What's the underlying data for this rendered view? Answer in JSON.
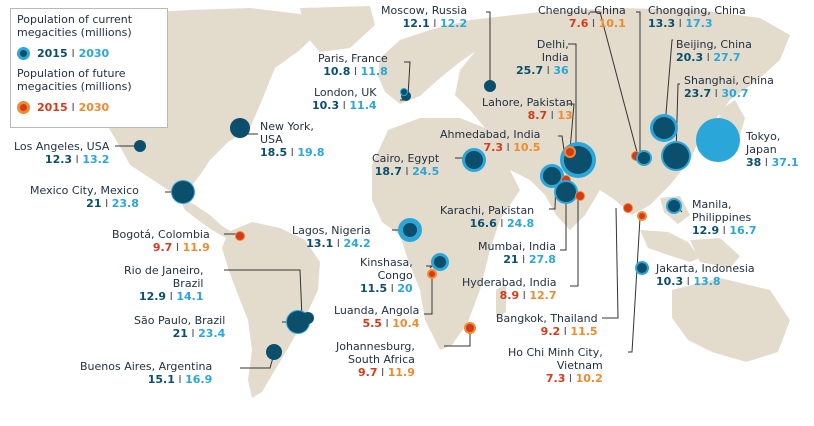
{
  "legend": {
    "current_title": "Population of current megacities (millions)",
    "current_2015": "2015",
    "current_2030": "2030",
    "future_title": "Population of future megacities (millions)",
    "future_2015": "2015",
    "future_2030": "2030",
    "separator": "I"
  },
  "colors": {
    "ocean": "#ffffff",
    "land": "#e3dccd",
    "current_2015": "#0b4f6c",
    "current_2030": "#2ba6d9",
    "future_2015": "#d63a1a",
    "future_2030": "#ef8a2d"
  },
  "cities": [
    {
      "name": "Moscow, Russia",
      "v2015": "12.1",
      "v2030": "12.2",
      "type": "current"
    },
    {
      "name": "Chengdu, China",
      "v2015": "7.6",
      "v2030": "10.1",
      "type": "future"
    },
    {
      "name": "Chongqing, China",
      "v2015": "13.3",
      "v2030": "17.3",
      "type": "current"
    },
    {
      "name": "Paris, France",
      "v2015": "10.8",
      "v2030": "11.8",
      "type": "current"
    },
    {
      "name": "Delhi, India",
      "v2015": "25.7",
      "v2030": "36",
      "type": "current"
    },
    {
      "name": "Beijing, China",
      "v2015": "20.3",
      "v2030": "27.7",
      "type": "current"
    },
    {
      "name": "London, UK",
      "v2015": "10.3",
      "v2030": "11.4",
      "type": "current"
    },
    {
      "name": "Shanghai, China",
      "v2015": "23.7",
      "v2030": "30.7",
      "type": "current"
    },
    {
      "name": "Lahore, Pakistan",
      "v2015": "8.7",
      "v2030": "13",
      "type": "future"
    },
    {
      "name": "New York, USA",
      "v2015": "18.5",
      "v2030": "19.8",
      "type": "current"
    },
    {
      "name": "Ahmedabad, India",
      "v2015": "7.3",
      "v2030": "10.5",
      "type": "future"
    },
    {
      "name": "Tokyo, Japan",
      "v2015": "38",
      "v2030": "37.1",
      "type": "current"
    },
    {
      "name": "Los Angeles, USA",
      "v2015": "12.3",
      "v2030": "13.2",
      "type": "current"
    },
    {
      "name": "Cairo, Egypt",
      "v2015": "18.7",
      "v2030": "24.5",
      "type": "current"
    },
    {
      "name": "Mexico City, Mexico",
      "v2015": "21",
      "v2030": "23.8",
      "type": "current"
    },
    {
      "name": "Karachi, Pakistan",
      "v2015": "16.6",
      "v2030": "24.8",
      "type": "current"
    },
    {
      "name": "Manila, Philippines",
      "v2015": "12.9",
      "v2030": "16.7",
      "type": "current"
    },
    {
      "name": "Bogotá, Colombia",
      "v2015": "9.7",
      "v2030": "11.9",
      "type": "future"
    },
    {
      "name": "Lagos, Nigeria",
      "v2015": "13.1",
      "v2030": "24.2",
      "type": "current"
    },
    {
      "name": "Mumbai, India",
      "v2015": "21",
      "v2030": "27.8",
      "type": "current"
    },
    {
      "name": "Kinshasa, Congo",
      "v2015": "11.5",
      "v2030": "20",
      "type": "current"
    },
    {
      "name": "Jakarta, Indonesia",
      "v2015": "10.3",
      "v2030": "13.8",
      "type": "current"
    },
    {
      "name": "Rio de Janeiro, Brazil",
      "v2015": "12.9",
      "v2030": "14.1",
      "type": "current"
    },
    {
      "name": "Hyderabad, India",
      "v2015": "8.9",
      "v2030": "12.7",
      "type": "future"
    },
    {
      "name": "Luanda, Angola",
      "v2015": "5.5",
      "v2030": "10.4",
      "type": "future"
    },
    {
      "name": "Bangkok, Thailand",
      "v2015": "9.2",
      "v2030": "11.5",
      "type": "future"
    },
    {
      "name": "São Paulo, Brazil",
      "v2015": "21",
      "v2030": "23.4",
      "type": "current"
    },
    {
      "name": "Johannesburg, South Africa",
      "v2015": "9.7",
      "v2030": "11.9",
      "type": "future"
    },
    {
      "name": "Ho Chi Minh City, Vietnam",
      "v2015": "7.3",
      "v2030": "10.2",
      "type": "future"
    },
    {
      "name": "Buenos Aires, Argentina",
      "v2015": "15.1",
      "v2030": "16.9",
      "type": "current"
    }
  ]
}
